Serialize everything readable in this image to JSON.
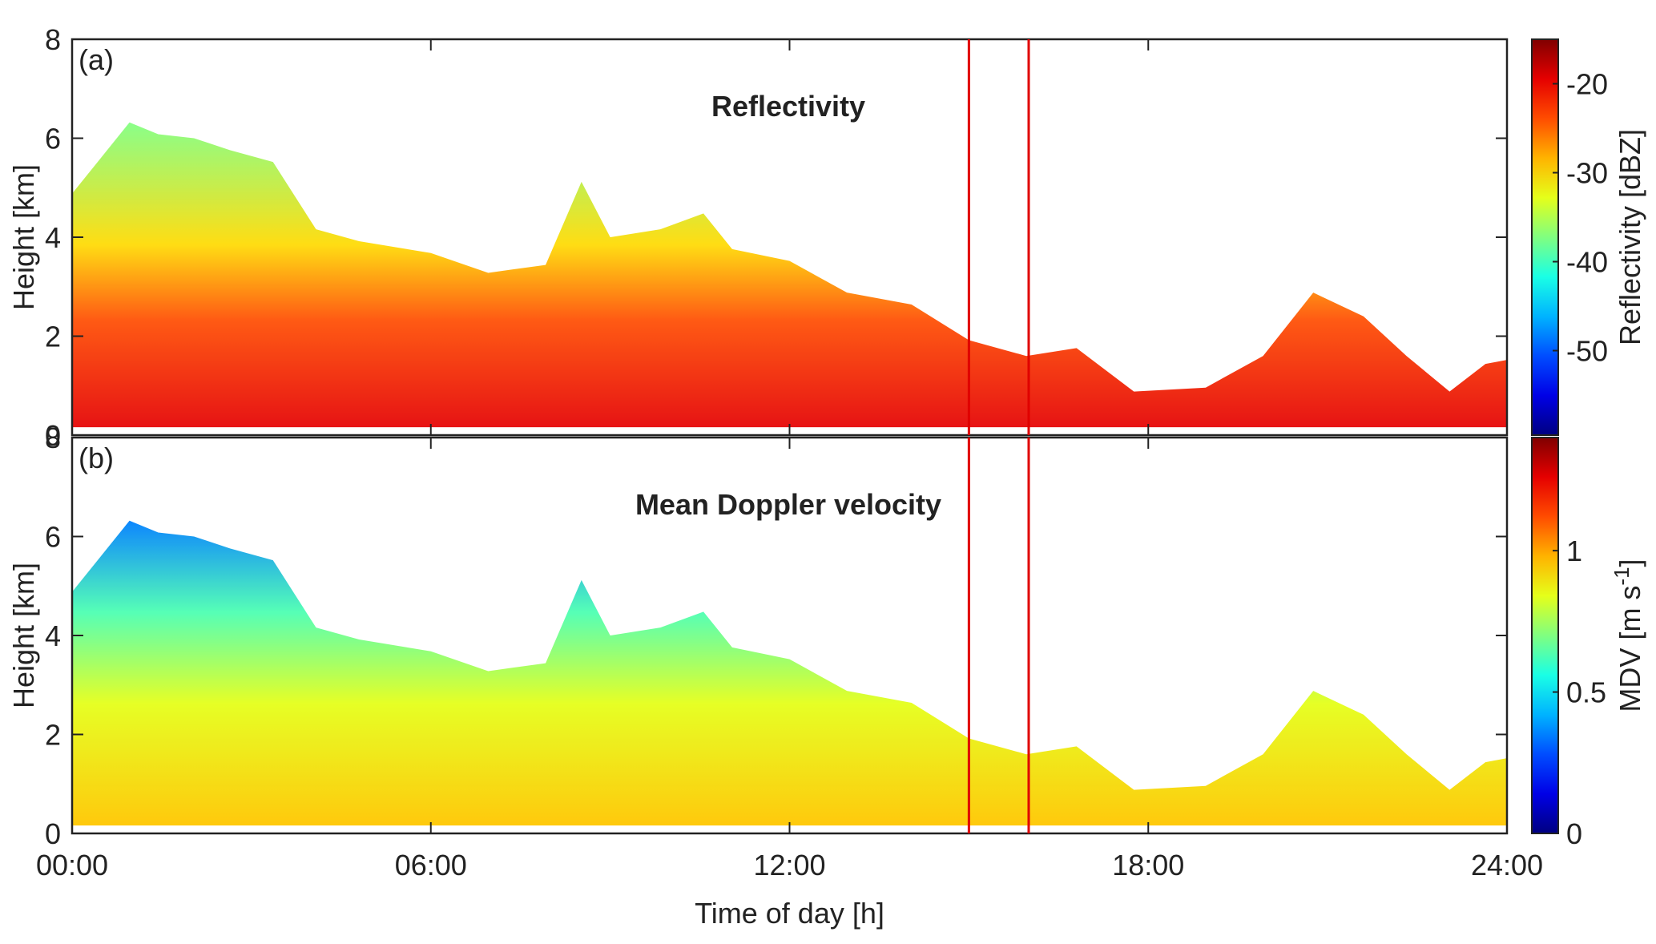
{
  "chart_data": [
    {
      "type": "heatmap",
      "panel_label": "(a)",
      "title": "Reflectivity",
      "ylabel": "Height  [km]",
      "xlim": [
        0,
        24
      ],
      "ylim": [
        0,
        8
      ],
      "yticks": [
        0,
        2,
        4,
        6,
        8
      ],
      "colorbar": {
        "label": "Reflectivity  [dBZ]",
        "clim": [
          -59.5,
          -15
        ],
        "ticks": [
          -50,
          -40,
          -30,
          -20
        ],
        "colormap": "jet"
      },
      "vlines": [
        15,
        16
      ],
      "vline_color": "#e00000"
    },
    {
      "type": "heatmap",
      "panel_label": "(b)",
      "title": "Mean Doppler velocity",
      "ylabel": "Height  [km]",
      "xlabel": "Time of day  [h]",
      "xlim": [
        0,
        24
      ],
      "ylim": [
        0,
        8
      ],
      "yticks": [
        0,
        2,
        4,
        6,
        8
      ],
      "xticks": [
        {
          "value": 0,
          "label": "00:00"
        },
        {
          "value": 6,
          "label": "06:00"
        },
        {
          "value": 12,
          "label": "12:00"
        },
        {
          "value": 18,
          "label": "18:00"
        },
        {
          "value": 24,
          "label": "24:00"
        }
      ],
      "colorbar": {
        "label": "MDV  [m s",
        "label_superscript": "-1",
        "label_end": "]",
        "clim": [
          0,
          1.4
        ],
        "ticks": [
          0,
          0.5,
          1
        ],
        "colormap": "jet"
      },
      "vlines": [
        15,
        16
      ],
      "vline_color": "#e00000"
    }
  ]
}
